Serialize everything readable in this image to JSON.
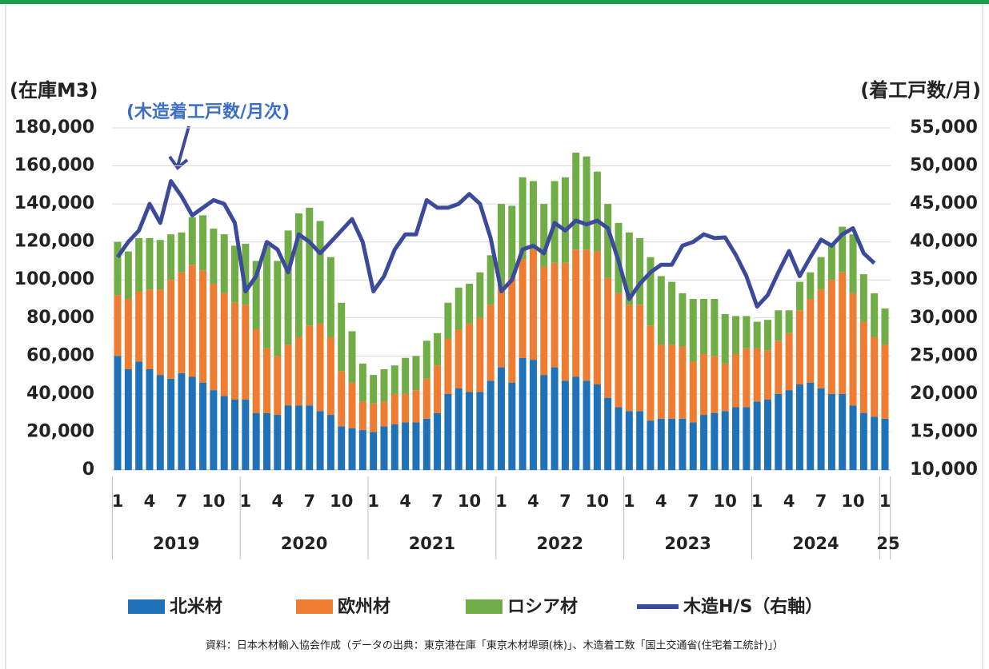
{
  "chart_data": {
    "type": "bar",
    "stacked": true,
    "y_label": "(在庫M3)",
    "y2_label": "(着工戸数/月)",
    "annotation": "(木造着工戸数/月次)",
    "source": "資料：日本木材輸入協会作成（データの出典：東京港在庫「東京木材埠頭(株)」、木造着工数「国土交通省(住宅着工統計)」）",
    "categories": [
      "1",
      null,
      null,
      "4",
      null,
      null,
      "7",
      null,
      null,
      "10",
      null,
      null,
      "1",
      null,
      null,
      "4",
      null,
      null,
      "7",
      null,
      null,
      "10",
      null,
      null,
      "1",
      null,
      null,
      "4",
      null,
      null,
      "7",
      null,
      null,
      "10",
      null,
      null,
      "1",
      null,
      null,
      "4",
      null,
      null,
      "7",
      null,
      null,
      "10",
      null,
      null,
      "1",
      null,
      null,
      "4",
      null,
      null,
      "7",
      null,
      null,
      "10",
      null,
      null,
      "1",
      null,
      null,
      "4",
      null,
      null,
      "7",
      null,
      null,
      "10",
      null,
      null,
      "1"
    ],
    "years": [
      "2019",
      "2020",
      "2021",
      "2022",
      "2023",
      "2024",
      "25"
    ],
    "ylim": [
      0,
      180000
    ],
    "yticks": [
      0,
      {
        "value": 20000,
        "label": "20,000"
      },
      {
        "value": 40000,
        "label": "40,000"
      },
      {
        "value": 60000,
        "label": "60,000"
      },
      {
        "value": 80000,
        "label": "80,000"
      },
      {
        "value": 100000,
        "label": "100,000"
      },
      {
        "value": 120000,
        "label": "120,000"
      },
      {
        "value": 140000,
        "label": "140,000"
      },
      {
        "value": 160000,
        "label": "160,000"
      },
      {
        "value": 180000,
        "label": "180,000"
      }
    ],
    "y2lim": [
      10000,
      55000
    ],
    "y2ticks": [
      {
        "value": 10000,
        "label": "10,000"
      },
      {
        "value": 15000,
        "label": "15,000"
      },
      {
        "value": 20000,
        "label": "20,000"
      },
      {
        "value": 25000,
        "label": "25,000"
      },
      {
        "value": 30000,
        "label": "30,000"
      },
      {
        "value": 35000,
        "label": "35,000"
      },
      {
        "value": 40000,
        "label": "40,000"
      },
      {
        "value": 45000,
        "label": "45,000"
      },
      {
        "value": 50000,
        "label": "50,000"
      },
      {
        "value": 55000,
        "label": "55,000"
      }
    ],
    "grid": true,
    "series": [
      {
        "name": "北米材",
        "color": "#1f72b8",
        "values": [
          60000,
          53000,
          57000,
          53000,
          50000,
          48000,
          51000,
          49000,
          46000,
          42000,
          39000,
          37000,
          37000,
          30000,
          30000,
          29000,
          34000,
          34000,
          34000,
          31000,
          29000,
          23000,
          22000,
          21000,
          20000,
          23000,
          24000,
          25000,
          25000,
          27000,
          30000,
          40000,
          43000,
          41000,
          41000,
          47000,
          54000,
          46000,
          59000,
          58000,
          50000,
          54000,
          47000,
          49000,
          47000,
          45000,
          38000,
          33000,
          31000,
          31000,
          26000,
          27000,
          27000,
          27000,
          25000,
          29000,
          30000,
          31000,
          33000,
          33000,
          36000,
          37000,
          40000,
          42000,
          45000,
          46000,
          43000,
          40000,
          40000,
          34000,
          30000,
          28000,
          27000
        ]
      },
      {
        "name": "欧州材",
        "color": "#ee7d31",
        "values": [
          32000,
          37000,
          37000,
          42000,
          45000,
          52000,
          53000,
          59000,
          59000,
          56000,
          54000,
          51000,
          50000,
          44000,
          34000,
          31000,
          32000,
          36000,
          42000,
          46000,
          41000,
          29000,
          24000,
          15000,
          15000,
          13000,
          16000,
          15000,
          17000,
          21000,
          25000,
          29000,
          31000,
          36000,
          39000,
          40000,
          42000,
          55000,
          52000,
          58000,
          57000,
          55000,
          62000,
          67000,
          69000,
          70000,
          63000,
          60000,
          56000,
          56000,
          50000,
          39000,
          39000,
          38000,
          32000,
          32000,
          30000,
          25000,
          28000,
          31000,
          28000,
          26000,
          28000,
          30000,
          39000,
          44000,
          52000,
          60000,
          64000,
          59000,
          48000,
          42000,
          39000
        ]
      },
      {
        "name": "ロシア材",
        "color": "#70ad47",
        "values": [
          28000,
          25000,
          28000,
          27000,
          26000,
          24000,
          21000,
          25000,
          29000,
          29000,
          31000,
          30000,
          32000,
          36000,
          54000,
          50000,
          60000,
          65000,
          62000,
          54000,
          42000,
          36000,
          27000,
          20000,
          15000,
          17000,
          15000,
          19000,
          18000,
          20000,
          17000,
          19000,
          22000,
          21000,
          24000,
          26000,
          44000,
          38000,
          43000,
          36000,
          33000,
          43000,
          45000,
          51000,
          49000,
          42000,
          39000,
          37000,
          38000,
          35000,
          36000,
          36000,
          33000,
          28000,
          33000,
          29000,
          30000,
          26000,
          20000,
          17000,
          14000,
          16000,
          16000,
          12000,
          15000,
          14000,
          17000,
          19000,
          24000,
          31000,
          25000,
          23000,
          19000
        ]
      },
      {
        "name": "木造H/S（右軸）",
        "type": "line",
        "axis": "y2",
        "color": "#3b4a9b",
        "values": [
          38000,
          40000,
          41500,
          45000,
          42500,
          48000,
          46000,
          43500,
          44500,
          45500,
          45000,
          42500,
          33500,
          35500,
          40000,
          39000,
          36000,
          41000,
          40000,
          38500,
          40000,
          41500,
          43000,
          40000,
          33500,
          35500,
          39000,
          41000,
          41000,
          45500,
          44500,
          44500,
          45000,
          46300,
          45000,
          40500,
          33500,
          35000,
          39000,
          39500,
          38500,
          42500,
          41500,
          42800,
          42300,
          42800,
          41800,
          37500,
          32500,
          34500,
          36000,
          37000,
          37000,
          39500,
          40000,
          41000,
          40500,
          40600,
          38300,
          35500,
          31500,
          33000,
          36000,
          38800,
          35500,
          38000,
          40300,
          39500,
          41000,
          41800,
          38500,
          37200,
          null
        ]
      }
    ]
  }
}
